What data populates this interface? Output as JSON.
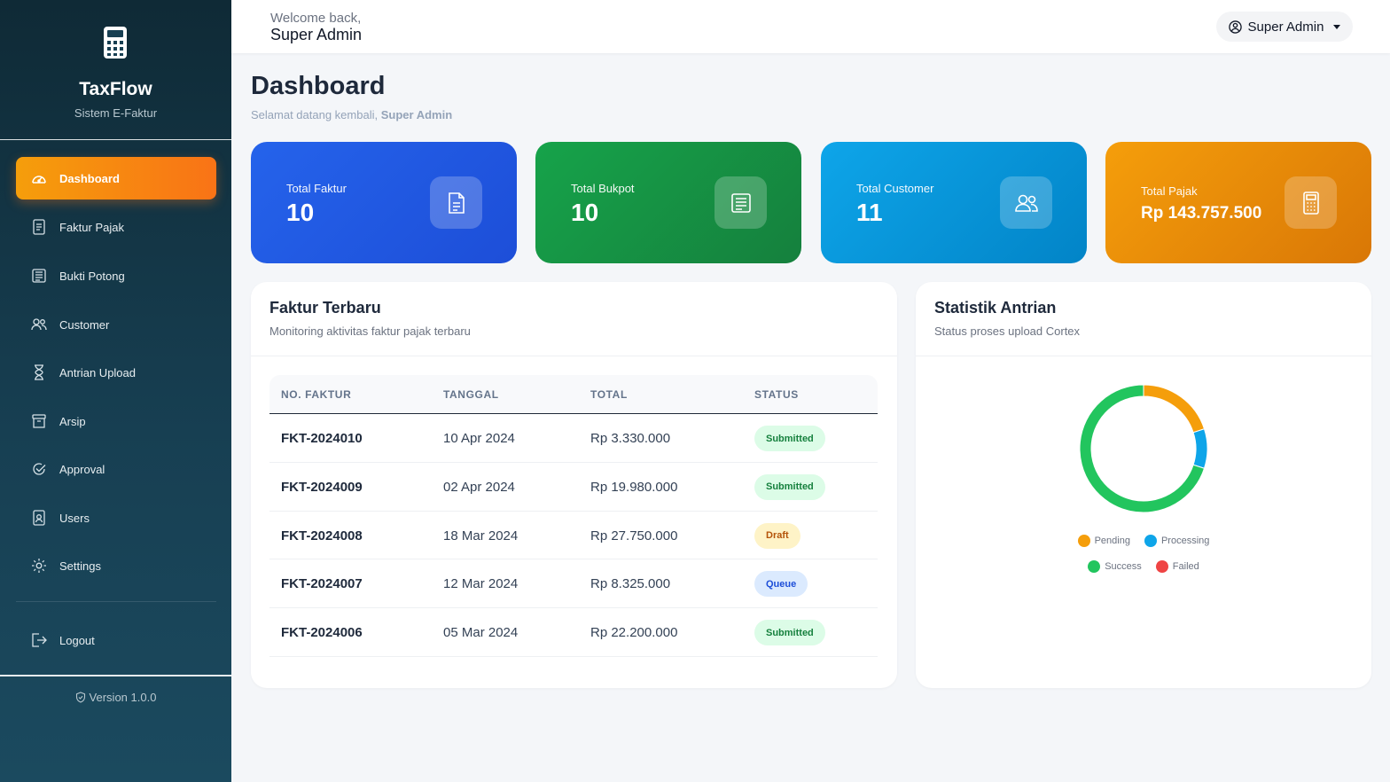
{
  "sidebar": {
    "brand_title": "TaxFlow",
    "brand_subtitle": "Sistem E-Faktur",
    "brand_icon": "calculator-icon",
    "items": [
      {
        "label": "Dashboard",
        "icon": "speedometer-icon",
        "active": true
      },
      {
        "label": "Faktur Pajak",
        "icon": "document-icon"
      },
      {
        "label": "Bukti Potong",
        "icon": "receipt-icon"
      },
      {
        "label": "Customer",
        "icon": "people-icon"
      },
      {
        "label": "Antrian Upload",
        "icon": "hourglass-icon"
      },
      {
        "label": "Arsip",
        "icon": "archive-icon"
      },
      {
        "label": "Approval",
        "icon": "check-circle-icon"
      },
      {
        "label": "Users",
        "icon": "user-badge-icon"
      },
      {
        "label": "Settings",
        "icon": "gear-icon"
      }
    ],
    "logout_label": "Logout",
    "version": "Version 1.0.0"
  },
  "topbar": {
    "welcome": "Welcome back,",
    "user_name": "Super Admin",
    "user_menu_label": "Super Admin"
  },
  "page": {
    "title": "Dashboard",
    "subtitle_prefix": "Selamat datang kembali,",
    "subtitle_name": "Super Admin"
  },
  "stats": [
    {
      "label": "Total Faktur",
      "value": "10",
      "icon": "document-icon",
      "color": "#2563eb"
    },
    {
      "label": "Total Bukpot",
      "value": "10",
      "icon": "receipt-icon",
      "color": "#16a34a"
    },
    {
      "label": "Total Customer",
      "value": "11",
      "icon": "people-icon",
      "color": "#0ea5e9"
    },
    {
      "label": "Total Pajak",
      "value": "Rp 143.757.500",
      "icon": "calculator-icon",
      "color": "#f59e0b"
    }
  ],
  "recent_invoices": {
    "title": "Faktur Terbaru",
    "subtitle": "Monitoring aktivitas faktur pajak terbaru",
    "columns": [
      "NO. FAKTUR",
      "TANGGAL",
      "TOTAL",
      "STATUS"
    ],
    "rows": [
      {
        "no": "FKT-2024010",
        "date": "10 Apr 2024",
        "total": "Rp 3.330.000",
        "status": "Submitted"
      },
      {
        "no": "FKT-2024009",
        "date": "02 Apr 2024",
        "total": "Rp 19.980.000",
        "status": "Submitted"
      },
      {
        "no": "FKT-2024008",
        "date": "18 Mar 2024",
        "total": "Rp 27.750.000",
        "status": "Draft"
      },
      {
        "no": "FKT-2024007",
        "date": "12 Mar 2024",
        "total": "Rp 8.325.000",
        "status": "Queue"
      },
      {
        "no": "FKT-2024006",
        "date": "05 Mar 2024",
        "total": "Rp 22.200.000",
        "status": "Submitted"
      }
    ]
  },
  "queue_stats": {
    "title": "Statistik Antrian",
    "subtitle": "Status proses upload Cortex",
    "chart_data": {
      "type": "pie",
      "series": [
        {
          "name": "Pending",
          "value": 2,
          "color": "#f59e0b"
        },
        {
          "name": "Processing",
          "value": 1,
          "color": "#0ea5e9"
        },
        {
          "name": "Success",
          "value": 7,
          "color": "#22c55e"
        },
        {
          "name": "Failed",
          "value": 0,
          "color": "#ef4444"
        }
      ],
      "legend": [
        "Pending",
        "Processing",
        "Success",
        "Failed"
      ]
    }
  }
}
